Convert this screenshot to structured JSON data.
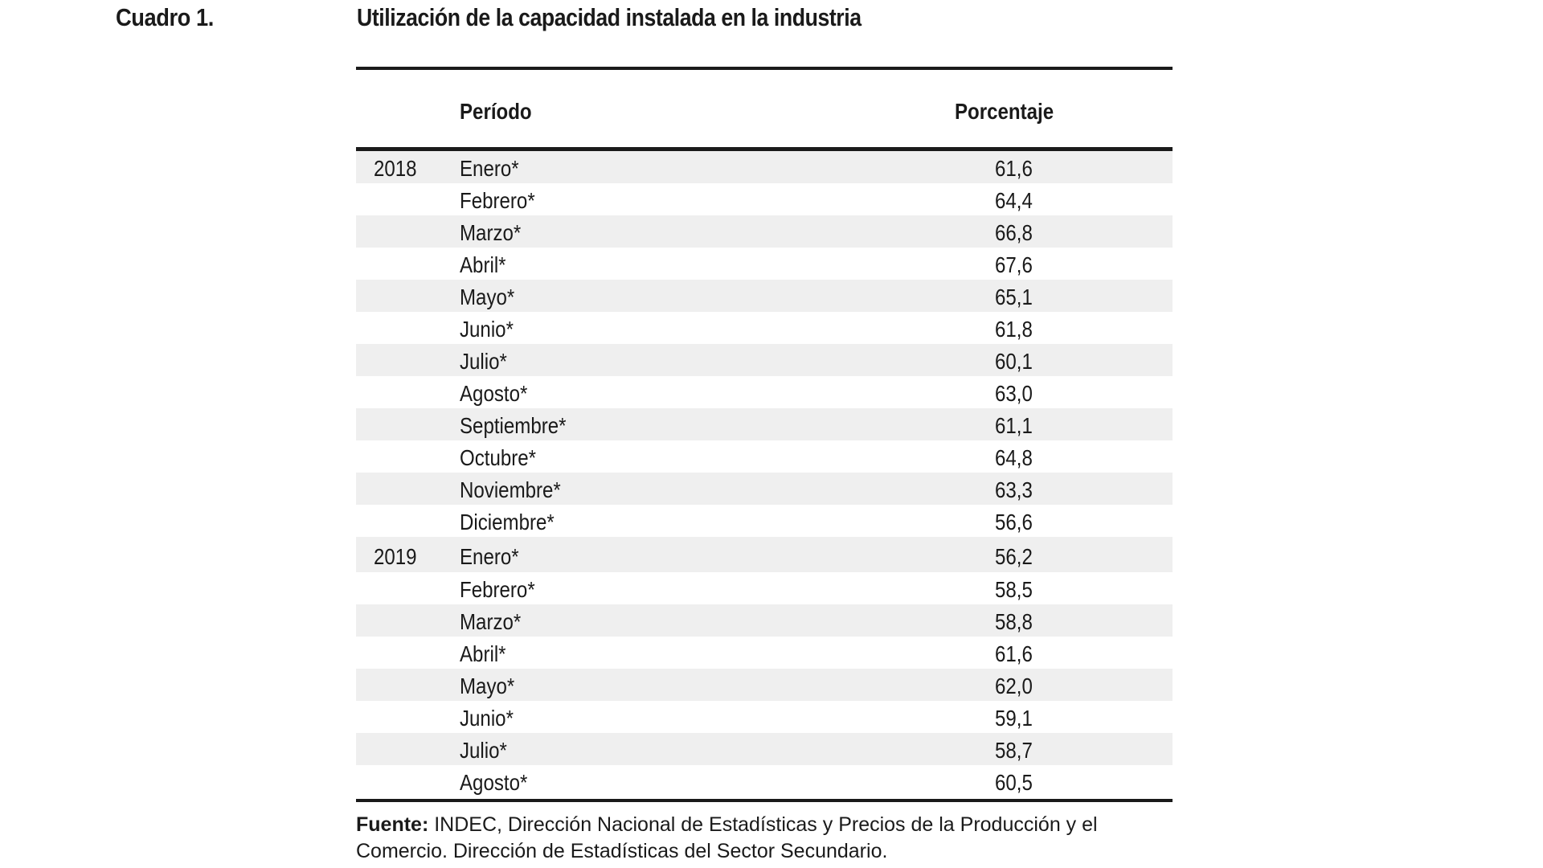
{
  "header": {
    "label": "Cuadro 1.",
    "title": "Utilización de la capacidad instalada en la industria"
  },
  "table": {
    "columns": [
      "Período",
      "Porcentaje"
    ],
    "rows": [
      {
        "year": "2018",
        "month": "Enero*",
        "value": "61,6"
      },
      {
        "year": "",
        "month": "Febrero*",
        "value": "64,4"
      },
      {
        "year": "",
        "month": "Marzo*",
        "value": "66,8"
      },
      {
        "year": "",
        "month": "Abril*",
        "value": "67,6"
      },
      {
        "year": "",
        "month": "Mayo*",
        "value": "65,1"
      },
      {
        "year": "",
        "month": "Junio*",
        "value": "61,8"
      },
      {
        "year": "",
        "month": "Julio*",
        "value": "60,1"
      },
      {
        "year": "",
        "month": "Agosto*",
        "value": "63,0"
      },
      {
        "year": "",
        "month": "Septiembre*",
        "value": "61,1"
      },
      {
        "year": "",
        "month": "Octubre*",
        "value": "64,8"
      },
      {
        "year": "",
        "month": "Noviembre*",
        "value": "63,3"
      },
      {
        "year": "",
        "month": "Diciembre*",
        "value": "56,6"
      },
      {
        "year": "2019",
        "month": "Enero*",
        "value": "56,2"
      },
      {
        "year": "",
        "month": "Febrero*",
        "value": "58,5"
      },
      {
        "year": "",
        "month": "Marzo*",
        "value": "58,8"
      },
      {
        "year": "",
        "month": "Abril*",
        "value": "61,6"
      },
      {
        "year": "",
        "month": "Mayo*",
        "value": "62,0"
      },
      {
        "year": "",
        "month": "Junio*",
        "value": "59,1"
      },
      {
        "year": "",
        "month": "Julio*",
        "value": "58,7"
      },
      {
        "year": "",
        "month": "Agosto*",
        "value": "60,5"
      }
    ]
  },
  "source": {
    "label": "Fuente:",
    "text": " INDEC, Dirección Nacional de Estadísticas y Precios de la Producción y el Comercio. Dirección de Estadísticas del Sector Secundario."
  },
  "colors": {
    "row_shade": "#efefef",
    "rule": "#1a1a1a"
  }
}
